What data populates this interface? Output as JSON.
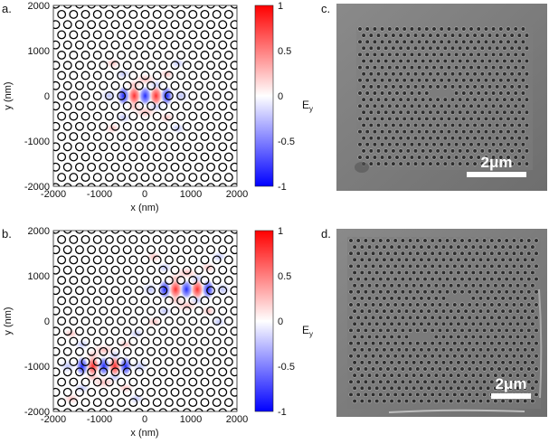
{
  "panels": [
    {
      "label": "a.",
      "kind": "field-map",
      "xlabel": "x (nm)",
      "ylabel": "y (nm)",
      "xticks": [
        "-2000",
        "-1000",
        "0",
        "1000",
        "2000"
      ],
      "yticks": [
        "2000",
        "1000",
        "0",
        "-1000",
        "-2000"
      ],
      "range": [
        -2000,
        2000
      ],
      "cavities": [
        {
          "x": 0,
          "y": 0
        }
      ],
      "colorbar": {
        "ticks": [
          "1",
          "0.5",
          "0",
          "-0.5",
          "-1"
        ],
        "label_main": "E",
        "label_sub": "y",
        "colors": [
          "#ff0000",
          "#ffffff",
          "#0000ff"
        ]
      }
    },
    {
      "label": "b.",
      "kind": "field-map",
      "xlabel": "x (nm)",
      "ylabel": "y (nm)",
      "xticks": [
        "-2000",
        "-1000",
        "0",
        "1000",
        "2000"
      ],
      "yticks": [
        "2000",
        "1000",
        "0",
        "-1000",
        "-2000"
      ],
      "range": [
        -2000,
        2000
      ],
      "cavities": [
        {
          "x": 900,
          "y": 700
        },
        {
          "x": -900,
          "y": -1000
        }
      ],
      "colorbar": {
        "ticks": [
          "1",
          "0.5",
          "0",
          "-0.5",
          "-1"
        ],
        "label_main": "E",
        "label_sub": "y",
        "colors": [
          "#ff0000",
          "#ffffff",
          "#0000ff"
        ]
      }
    },
    {
      "label": "c.",
      "kind": "sem-image",
      "scalebar": "2μm"
    },
    {
      "label": "d.",
      "kind": "sem-image",
      "scalebar": "2μm"
    }
  ]
}
